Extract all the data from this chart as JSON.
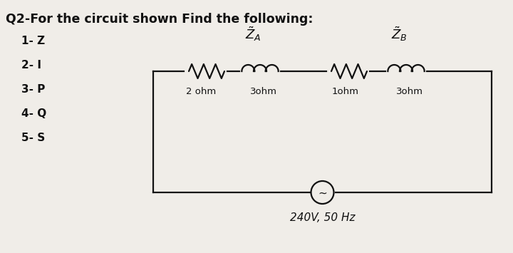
{
  "title": "Q2-For the circuit shown Find the following:",
  "list_items": [
    "1- Z",
    "2- I",
    "3- P",
    "4- Q",
    "5- S"
  ],
  "za_label": "$\\tilde{Z}_A$",
  "zb_label": "$\\tilde{Z}_B$",
  "resistor_labels": [
    "2 ohm",
    "3ohm",
    "1ohm",
    "3ohm"
  ],
  "source_label": "240V, 50 Hz",
  "bg_color": "#f0ede8",
  "text_color": "#111111",
  "circuit_color": "#111111",
  "title_fontsize": 12.5,
  "list_fontsize": 11,
  "label_fontsize": 9.5
}
